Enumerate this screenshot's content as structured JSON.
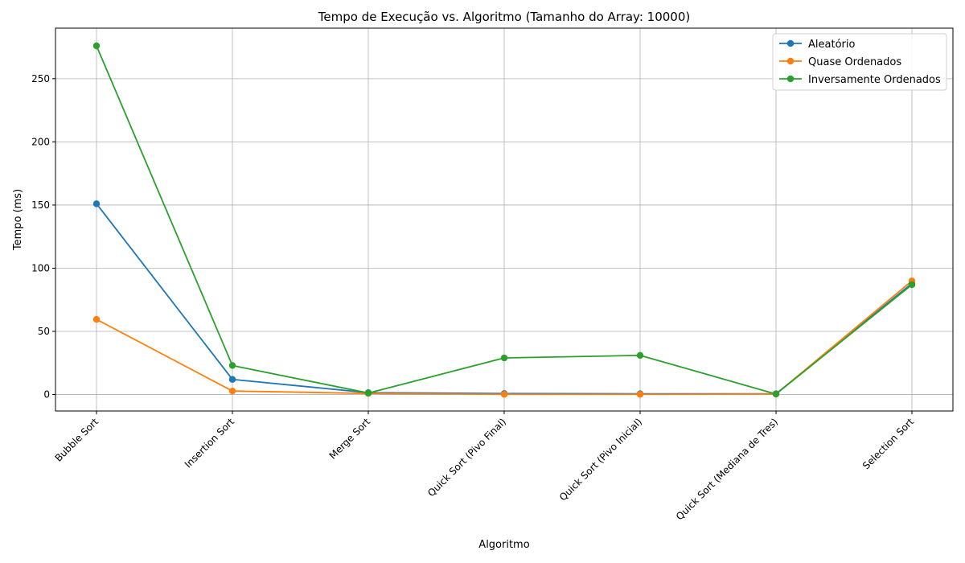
{
  "chart_data": {
    "type": "line",
    "title": "Tempo de Execução vs. Algoritmo (Tamanho do Array: 10000)",
    "xlabel": "Algoritmo",
    "ylabel": "Tempo (ms)",
    "categories": [
      "Bubble Sort",
      "Insertion Sort",
      "Merge Sort",
      "Quick Sort (Pivo Final)",
      "Quick Sort (Pivo Inicial)",
      "Quick Sort (Mediana de Tres)",
      "Selection Sort"
    ],
    "ylim": [
      -13,
      290
    ],
    "yticks": [
      0,
      50,
      100,
      150,
      200,
      250
    ],
    "grid": true,
    "legend_position": "top-right",
    "series": [
      {
        "name": "Aleatório",
        "color": "#1f77b4",
        "values": [
          151,
          12,
          1.5,
          0.8,
          0.6,
          0.6,
          88
        ]
      },
      {
        "name": "Quase Ordenados",
        "color": "#ff7f0e",
        "values": [
          59.5,
          2.8,
          0.9,
          0.2,
          0.2,
          0.4,
          90
        ]
      },
      {
        "name": "Inversamente Ordenados",
        "color": "#2ca02c",
        "values": [
          276,
          23,
          1.2,
          29,
          31,
          0.4,
          87
        ]
      }
    ]
  }
}
